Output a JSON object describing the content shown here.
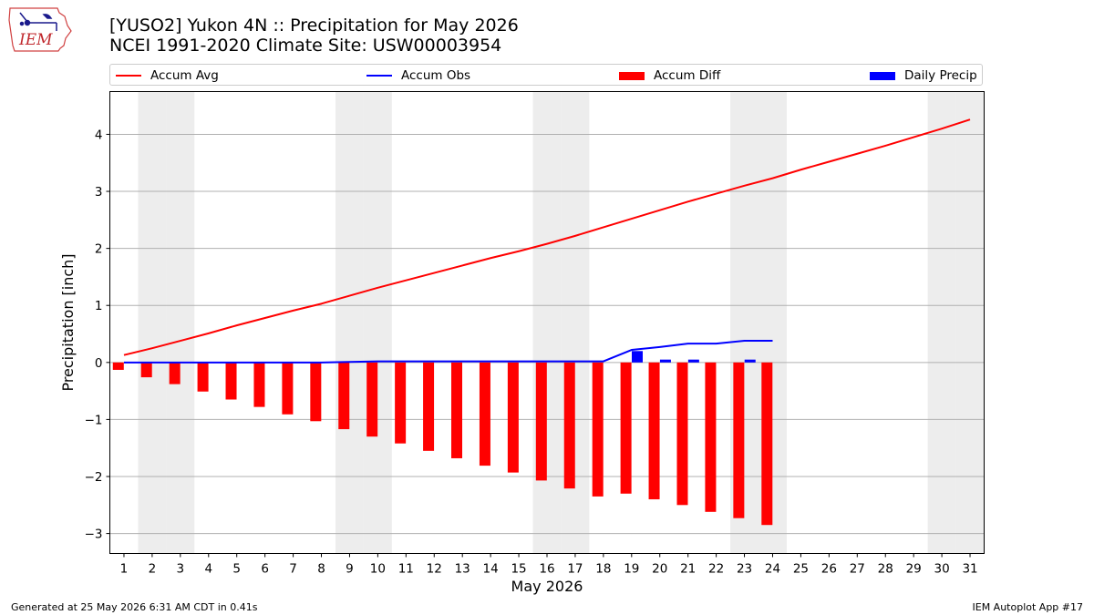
{
  "header": {
    "title": "[YUSO2] Yukon 4N :: Precipitation for May 2026",
    "subtitle": "NCEI 1991-2020 Climate Site: USW00003954"
  },
  "logo": {
    "text": "IEM",
    "icon": "iem-iowa-logo"
  },
  "legend": {
    "items": [
      {
        "label": "Accum Avg",
        "type": "line",
        "color": "#ff0000"
      },
      {
        "label": "Accum Obs",
        "type": "line",
        "color": "#0000ff"
      },
      {
        "label": "Accum Diff",
        "type": "bar",
        "color": "#ff0000"
      },
      {
        "label": "Daily Precip",
        "type": "bar",
        "color": "#0000ff"
      }
    ]
  },
  "footer": {
    "left": "Generated at 25 May 2026 6:31 AM CDT in 0.41s",
    "right": "IEM Autoplot App #17"
  },
  "chart_data": {
    "type": "bar",
    "xlabel": "May 2026",
    "ylabel": "Precipitation [inch]",
    "xlim": [
      0.5,
      31.5
    ],
    "ylim": [
      -3.35,
      4.75
    ],
    "yticks": [
      -3,
      -2,
      -1,
      0,
      1,
      2,
      3,
      4
    ],
    "ytick_labels": [
      "−3",
      "−2",
      "−1",
      "0",
      "1",
      "2",
      "3",
      "4"
    ],
    "x": [
      1,
      2,
      3,
      4,
      5,
      6,
      7,
      8,
      9,
      10,
      11,
      12,
      13,
      14,
      15,
      16,
      17,
      18,
      19,
      20,
      21,
      22,
      23,
      24,
      25,
      26,
      27,
      28,
      29,
      30,
      31
    ],
    "weekend_days": [
      2,
      3,
      9,
      10,
      16,
      17,
      23,
      24,
      30,
      31
    ],
    "grid": "horizontal",
    "series": [
      {
        "name": "Accum Avg",
        "kind": "line",
        "color": "#ff0000",
        "x": [
          1,
          2,
          3,
          4,
          5,
          6,
          7,
          8,
          9,
          10,
          11,
          12,
          13,
          14,
          15,
          16,
          17,
          18,
          19,
          20,
          21,
          22,
          23,
          24,
          25,
          26,
          27,
          28,
          29,
          30,
          31
        ],
        "values": [
          0.13,
          0.25,
          0.38,
          0.51,
          0.65,
          0.78,
          0.91,
          1.03,
          1.17,
          1.31,
          1.44,
          1.57,
          1.7,
          1.83,
          1.95,
          2.08,
          2.22,
          2.37,
          2.52,
          2.67,
          2.82,
          2.96,
          3.1,
          3.23,
          3.38,
          3.52,
          3.66,
          3.8,
          3.95,
          4.1,
          4.26
        ]
      },
      {
        "name": "Accum Obs",
        "kind": "line",
        "color": "#0000ff",
        "x": [
          1,
          2,
          3,
          4,
          5,
          6,
          7,
          8,
          9,
          10,
          11,
          12,
          13,
          14,
          15,
          16,
          17,
          18,
          19,
          20,
          21,
          22,
          23,
          24
        ],
        "values": [
          0.0,
          0.0,
          0.0,
          0.0,
          0.0,
          0.0,
          0.0,
          0.0,
          0.01,
          0.02,
          0.02,
          0.02,
          0.02,
          0.02,
          0.02,
          0.02,
          0.02,
          0.02,
          0.22,
          0.27,
          0.33,
          0.33,
          0.38,
          0.38
        ]
      },
      {
        "name": "Accum Diff",
        "kind": "bar",
        "color": "#ff0000",
        "x": [
          1,
          2,
          3,
          4,
          5,
          6,
          7,
          8,
          9,
          10,
          11,
          12,
          13,
          14,
          15,
          16,
          17,
          18,
          19,
          20,
          21,
          22,
          23,
          24
        ],
        "values": [
          -0.13,
          -0.26,
          -0.38,
          -0.51,
          -0.65,
          -0.78,
          -0.91,
          -1.03,
          -1.17,
          -1.3,
          -1.42,
          -1.55,
          -1.68,
          -1.81,
          -1.93,
          -2.07,
          -2.21,
          -2.35,
          -2.3,
          -2.4,
          -2.5,
          -2.62,
          -2.73,
          -2.85
        ]
      },
      {
        "name": "Daily Precip",
        "kind": "bar",
        "color": "#0000ff",
        "x": [
          19,
          20,
          21,
          23
        ],
        "values": [
          0.2,
          0.05,
          0.05,
          0.05
        ]
      }
    ]
  }
}
